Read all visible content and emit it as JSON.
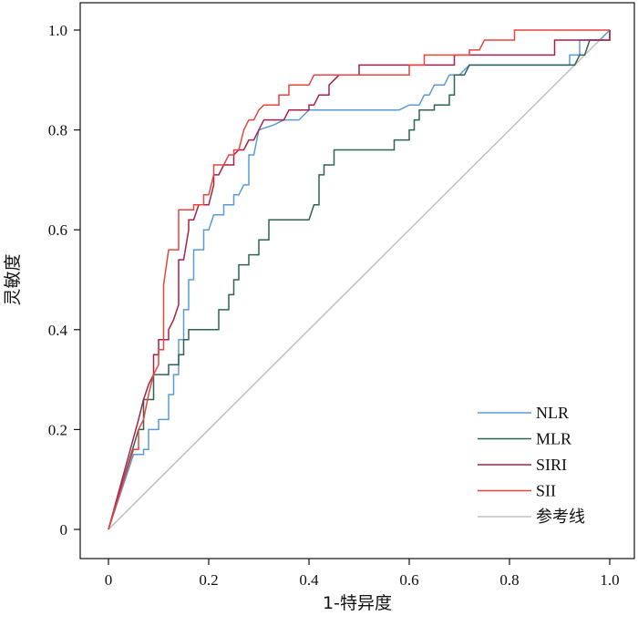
{
  "chart_data": {
    "type": "line",
    "xlabel": "1-特异度",
    "ylabel": "灵敏度",
    "xlim": [
      0,
      1
    ],
    "ylim": [
      0,
      1
    ],
    "x_ticks": [
      "0",
      "0.2",
      "0.4",
      "0.6",
      "0.8",
      "1.0"
    ],
    "y_ticks": [
      "0",
      "0.2",
      "0.4",
      "0.6",
      "0.8",
      "1.0"
    ],
    "grid": false,
    "legend_position": "bottom-right",
    "series": [
      {
        "name": "NLR",
        "color": "#5b9bd5",
        "points": [
          [
            0,
            0
          ],
          [
            0.05,
            0.15
          ],
          [
            0.07,
            0.15
          ],
          [
            0.07,
            0.16
          ],
          [
            0.08,
            0.16
          ],
          [
            0.08,
            0.2
          ],
          [
            0.1,
            0.2
          ],
          [
            0.1,
            0.22
          ],
          [
            0.12,
            0.22
          ],
          [
            0.12,
            0.27
          ],
          [
            0.13,
            0.27
          ],
          [
            0.13,
            0.31
          ],
          [
            0.14,
            0.31
          ],
          [
            0.14,
            0.38
          ],
          [
            0.15,
            0.38
          ],
          [
            0.15,
            0.44
          ],
          [
            0.16,
            0.44
          ],
          [
            0.16,
            0.5
          ],
          [
            0.17,
            0.5
          ],
          [
            0.17,
            0.56
          ],
          [
            0.19,
            0.56
          ],
          [
            0.19,
            0.6
          ],
          [
            0.2,
            0.6
          ],
          [
            0.21,
            0.63
          ],
          [
            0.23,
            0.63
          ],
          [
            0.23,
            0.65
          ],
          [
            0.25,
            0.65
          ],
          [
            0.25,
            0.67
          ],
          [
            0.26,
            0.67
          ],
          [
            0.27,
            0.69
          ],
          [
            0.28,
            0.69
          ],
          [
            0.28,
            0.75
          ],
          [
            0.29,
            0.75
          ],
          [
            0.3,
            0.8
          ],
          [
            0.33,
            0.81
          ],
          [
            0.35,
            0.82
          ],
          [
            0.38,
            0.82
          ],
          [
            0.4,
            0.84
          ],
          [
            0.58,
            0.84
          ],
          [
            0.6,
            0.85
          ],
          [
            0.62,
            0.85
          ],
          [
            0.63,
            0.87
          ],
          [
            0.64,
            0.87
          ],
          [
            0.65,
            0.89
          ],
          [
            0.67,
            0.89
          ],
          [
            0.68,
            0.91
          ],
          [
            0.7,
            0.91
          ],
          [
            0.72,
            0.93
          ],
          [
            0.92,
            0.93
          ],
          [
            0.92,
            0.95
          ],
          [
            0.94,
            0.95
          ],
          [
            0.94,
            0.98
          ],
          [
            0.98,
            0.98
          ],
          [
            1,
            1
          ]
        ]
      },
      {
        "name": "MLR",
        "color": "#2e6356",
        "points": [
          [
            0,
            0
          ],
          [
            0.06,
            0.2
          ],
          [
            0.07,
            0.2
          ],
          [
            0.07,
            0.26
          ],
          [
            0.09,
            0.26
          ],
          [
            0.09,
            0.31
          ],
          [
            0.12,
            0.31
          ],
          [
            0.12,
            0.33
          ],
          [
            0.14,
            0.33
          ],
          [
            0.14,
            0.35
          ],
          [
            0.15,
            0.35
          ],
          [
            0.15,
            0.38
          ],
          [
            0.16,
            0.38
          ],
          [
            0.16,
            0.4
          ],
          [
            0.22,
            0.4
          ],
          [
            0.22,
            0.44
          ],
          [
            0.24,
            0.44
          ],
          [
            0.24,
            0.47
          ],
          [
            0.25,
            0.47
          ],
          [
            0.25,
            0.5
          ],
          [
            0.26,
            0.5
          ],
          [
            0.26,
            0.53
          ],
          [
            0.28,
            0.53
          ],
          [
            0.28,
            0.55
          ],
          [
            0.3,
            0.55
          ],
          [
            0.3,
            0.58
          ],
          [
            0.32,
            0.58
          ],
          [
            0.32,
            0.62
          ],
          [
            0.4,
            0.62
          ],
          [
            0.41,
            0.65
          ],
          [
            0.42,
            0.65
          ],
          [
            0.42,
            0.71
          ],
          [
            0.43,
            0.71
          ],
          [
            0.43,
            0.73
          ],
          [
            0.45,
            0.73
          ],
          [
            0.45,
            0.76
          ],
          [
            0.57,
            0.76
          ],
          [
            0.57,
            0.78
          ],
          [
            0.6,
            0.78
          ],
          [
            0.6,
            0.8
          ],
          [
            0.61,
            0.8
          ],
          [
            0.61,
            0.82
          ],
          [
            0.62,
            0.82
          ],
          [
            0.62,
            0.84
          ],
          [
            0.65,
            0.84
          ],
          [
            0.65,
            0.85
          ],
          [
            0.68,
            0.85
          ],
          [
            0.68,
            0.87
          ],
          [
            0.69,
            0.87
          ],
          [
            0.69,
            0.91
          ],
          [
            0.71,
            0.91
          ],
          [
            0.72,
            0.93
          ],
          [
            0.93,
            0.93
          ],
          [
            0.94,
            0.95
          ],
          [
            0.95,
            0.95
          ],
          [
            0.96,
            0.98
          ],
          [
            1,
            0.98
          ],
          [
            1,
            1
          ]
        ]
      },
      {
        "name": "SIRI",
        "color": "#a8204a",
        "points": [
          [
            0,
            0
          ],
          [
            0.06,
            0.22
          ],
          [
            0.07,
            0.26
          ],
          [
            0.08,
            0.29
          ],
          [
            0.09,
            0.31
          ],
          [
            0.09,
            0.35
          ],
          [
            0.1,
            0.35
          ],
          [
            0.1,
            0.38
          ],
          [
            0.12,
            0.38
          ],
          [
            0.12,
            0.4
          ],
          [
            0.13,
            0.42
          ],
          [
            0.14,
            0.45
          ],
          [
            0.14,
            0.54
          ],
          [
            0.15,
            0.54
          ],
          [
            0.16,
            0.6
          ],
          [
            0.16,
            0.62
          ],
          [
            0.17,
            0.62
          ],
          [
            0.18,
            0.65
          ],
          [
            0.2,
            0.65
          ],
          [
            0.21,
            0.69
          ],
          [
            0.21,
            0.71
          ],
          [
            0.22,
            0.71
          ],
          [
            0.23,
            0.73
          ],
          [
            0.25,
            0.73
          ],
          [
            0.25,
            0.75
          ],
          [
            0.26,
            0.76
          ],
          [
            0.27,
            0.76
          ],
          [
            0.28,
            0.78
          ],
          [
            0.29,
            0.78
          ],
          [
            0.3,
            0.8
          ],
          [
            0.31,
            0.82
          ],
          [
            0.35,
            0.82
          ],
          [
            0.36,
            0.84
          ],
          [
            0.4,
            0.84
          ],
          [
            0.4,
            0.85
          ],
          [
            0.41,
            0.85
          ],
          [
            0.42,
            0.87
          ],
          [
            0.44,
            0.87
          ],
          [
            0.44,
            0.89
          ],
          [
            0.46,
            0.91
          ],
          [
            0.5,
            0.91
          ],
          [
            0.5,
            0.93
          ],
          [
            0.69,
            0.93
          ],
          [
            0.69,
            0.95
          ],
          [
            0.89,
            0.95
          ],
          [
            0.89,
            0.98
          ],
          [
            1,
            0.98
          ],
          [
            1,
            1
          ]
        ]
      },
      {
        "name": "SII",
        "color": "#e8453c",
        "points": [
          [
            0,
            0
          ],
          [
            0.05,
            0.16
          ],
          [
            0.06,
            0.16
          ],
          [
            0.06,
            0.2
          ],
          [
            0.07,
            0.22
          ],
          [
            0.08,
            0.27
          ],
          [
            0.09,
            0.31
          ],
          [
            0.1,
            0.33
          ],
          [
            0.1,
            0.36
          ],
          [
            0.11,
            0.36
          ],
          [
            0.11,
            0.49
          ],
          [
            0.12,
            0.56
          ],
          [
            0.14,
            0.56
          ],
          [
            0.14,
            0.64
          ],
          [
            0.17,
            0.64
          ],
          [
            0.17,
            0.65
          ],
          [
            0.19,
            0.65
          ],
          [
            0.19,
            0.67
          ],
          [
            0.2,
            0.67
          ],
          [
            0.21,
            0.71
          ],
          [
            0.21,
            0.73
          ],
          [
            0.23,
            0.73
          ],
          [
            0.24,
            0.75
          ],
          [
            0.25,
            0.75
          ],
          [
            0.25,
            0.76
          ],
          [
            0.26,
            0.76
          ],
          [
            0.27,
            0.8
          ],
          [
            0.28,
            0.82
          ],
          [
            0.29,
            0.82
          ],
          [
            0.3,
            0.84
          ],
          [
            0.31,
            0.85
          ],
          [
            0.34,
            0.85
          ],
          [
            0.34,
            0.87
          ],
          [
            0.36,
            0.87
          ],
          [
            0.36,
            0.89
          ],
          [
            0.4,
            0.89
          ],
          [
            0.41,
            0.91
          ],
          [
            0.6,
            0.91
          ],
          [
            0.6,
            0.93
          ],
          [
            0.63,
            0.93
          ],
          [
            0.63,
            0.95
          ],
          [
            0.72,
            0.95
          ],
          [
            0.72,
            0.96
          ],
          [
            0.74,
            0.96
          ],
          [
            0.75,
            0.98
          ],
          [
            0.78,
            0.98
          ],
          [
            0.79,
            0.98
          ],
          [
            0.81,
            0.98
          ],
          [
            0.81,
            1
          ],
          [
            1,
            1
          ]
        ]
      },
      {
        "name": "参考线",
        "color": "#c0c0c0",
        "points": [
          [
            0,
            0
          ],
          [
            1,
            1
          ]
        ]
      }
    ]
  }
}
